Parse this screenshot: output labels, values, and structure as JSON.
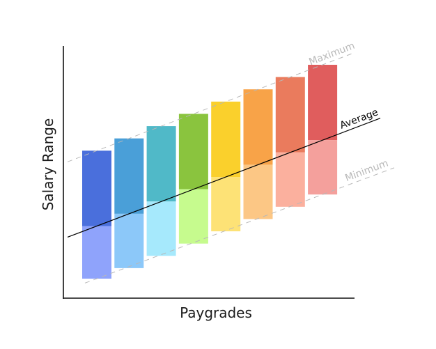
{
  "chart_data": {
    "type": "bar",
    "xlabel": "Paygrades",
    "ylabel": "Salary Range",
    "grades": [
      {
        "min": 14,
        "mid": 44,
        "max": 87,
        "color_top": "#4a6fdc",
        "color_bottom": "#8fa3fb"
      },
      {
        "min": 20,
        "mid": 51,
        "max": 94,
        "color_top": "#4a9fd8",
        "color_bottom": "#8cc8f9"
      },
      {
        "min": 27,
        "mid": 58,
        "max": 101,
        "color_top": "#50b9c8",
        "color_bottom": "#a6e9fc"
      },
      {
        "min": 34,
        "mid": 65,
        "max": 108,
        "color_top": "#8ac43e",
        "color_bottom": "#c6fb8e"
      },
      {
        "min": 41,
        "mid": 72,
        "max": 115,
        "color_top": "#fad02c",
        "color_bottom": "#fde276"
      },
      {
        "min": 48,
        "mid": 79,
        "max": 122,
        "color_top": "#f8a348",
        "color_bottom": "#fcc785"
      },
      {
        "min": 55,
        "mid": 86,
        "max": 129,
        "color_top": "#ea7b5d",
        "color_bottom": "#fbb09e"
      },
      {
        "min": 62,
        "mid": 93,
        "max": 136,
        "color_top": "#e05d5d",
        "color_bottom": "#f4a09c"
      }
    ],
    "lines": {
      "maximum": {
        "label": "Maximum",
        "color": "#b8b8b8",
        "dashed": true
      },
      "average": {
        "label": "Average",
        "color": "#000000",
        "dashed": false
      },
      "minimum": {
        "label": "Minimum",
        "color": "#b8b8b8",
        "dashed": true
      }
    },
    "axis_color": "#111111",
    "grid": false
  }
}
